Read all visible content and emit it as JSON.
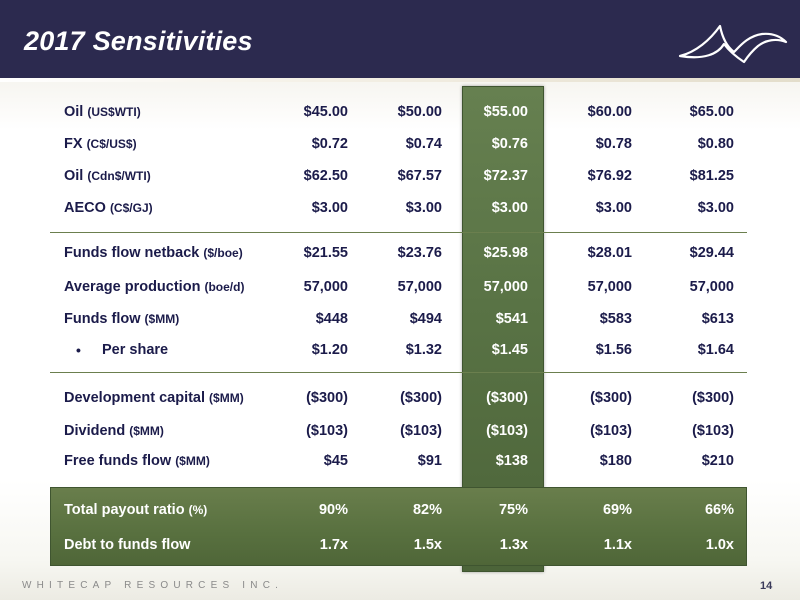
{
  "slide": {
    "title": "2017 Sensitivities",
    "footer": "WHITECAP RESOURCES INC.",
    "page_number": "14"
  },
  "colors": {
    "header_bg": "#2c2a4f",
    "highlight_green": "#5b7447",
    "text_navy": "#1b1b4a"
  },
  "rows": [
    {
      "label": "Oil",
      "unit": "(US$WTI)",
      "values": [
        "$45.00",
        "$50.00",
        "$55.00",
        "$60.00",
        "$65.00"
      ]
    },
    {
      "label": "FX",
      "unit": "(C$/US$)",
      "values": [
        "$0.72",
        "$0.74",
        "$0.76",
        "$0.78",
        "$0.80"
      ]
    },
    {
      "label": "Oil",
      "unit": "(Cdn$/WTI)",
      "values": [
        "$62.50",
        "$67.57",
        "$72.37",
        "$76.92",
        "$81.25"
      ]
    },
    {
      "label": "AECO",
      "unit": "(C$/GJ)",
      "values": [
        "$3.00",
        "$3.00",
        "$3.00",
        "$3.00",
        "$3.00"
      ]
    },
    {
      "label": "Funds flow netback",
      "unit": "($/boe)",
      "values": [
        "$21.55",
        "$23.76",
        "$25.98",
        "$28.01",
        "$29.44"
      ]
    },
    {
      "label": "Average production",
      "unit": "(boe/d)",
      "values": [
        "57,000",
        "57,000",
        "57,000",
        "57,000",
        "57,000"
      ]
    },
    {
      "label": "Funds flow",
      "unit": "($MM)",
      "values": [
        "$448",
        "$494",
        "$541",
        "$583",
        "$613"
      ]
    },
    {
      "label": "Per share",
      "unit": "",
      "values": [
        "$1.20",
        "$1.32",
        "$1.45",
        "$1.56",
        "$1.64"
      ]
    },
    {
      "label": "Development capital",
      "unit": "($MM)",
      "values": [
        "($300)",
        "($300)",
        "($300)",
        "($300)",
        "($300)"
      ]
    },
    {
      "label": "Dividend",
      "unit": "($MM)",
      "values": [
        "($103)",
        "($103)",
        "($103)",
        "($103)",
        "($103)"
      ]
    },
    {
      "label": "Free funds flow",
      "unit": "($MM)",
      "values": [
        "$45",
        "$91",
        "$138",
        "$180",
        "$210"
      ]
    },
    {
      "label": "Total payout ratio",
      "unit": "(%)",
      "values": [
        "90%",
        "82%",
        "75%",
        "69%",
        "66%"
      ]
    },
    {
      "label": "Debt to funds flow",
      "unit": "",
      "values": [
        "1.7x",
        "1.5x",
        "1.3x",
        "1.1x",
        "1.0x"
      ]
    }
  ],
  "bullet_glyph": "•"
}
